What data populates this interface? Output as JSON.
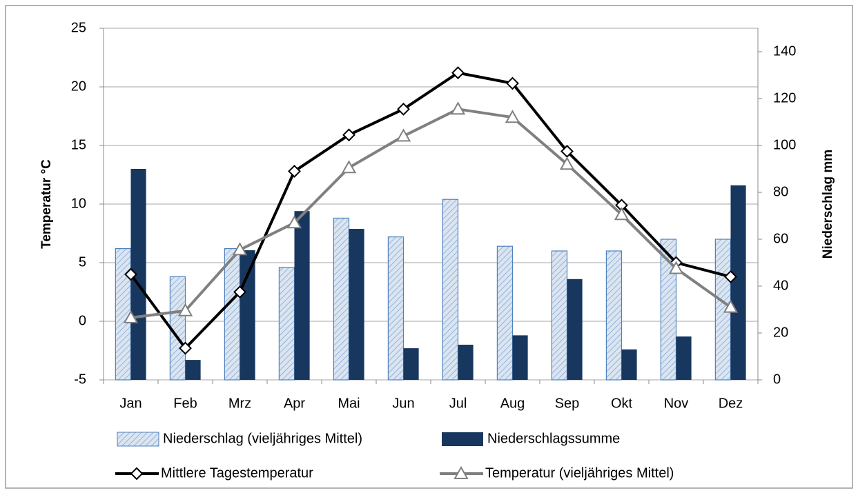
{
  "chart_data": {
    "type": "bar-line",
    "y_label": "Temperatur °C",
    "y2_label": "Niederschlag mm",
    "categories": [
      "Jan",
      "Feb",
      "Mrz",
      "Apr",
      "Mai",
      "Jun",
      "Jul",
      "Aug",
      "Sep",
      "Okt",
      "Nov",
      "Dez"
    ],
    "series": [
      {
        "name": "Niederschlag (vieljähriges Mittel)",
        "kind": "bar",
        "axis": "y2",
        "color": "#4f81bd",
        "hatch": true,
        "values": [
          56,
          44,
          56,
          48,
          69,
          61,
          77,
          57,
          55,
          55,
          60,
          60
        ]
      },
      {
        "name": "Niederschlagssumme",
        "kind": "bar",
        "axis": "y2",
        "color": "#17375e",
        "values": [
          90,
          8.5,
          55.3,
          72,
          64.4,
          13.5,
          15,
          19,
          43,
          13,
          18.5,
          83
        ]
      },
      {
        "name": "Mittlere Tagestemperatur",
        "kind": "line",
        "color": "#000000",
        "marker": "diamond",
        "values": [
          4,
          -2.3,
          2.5,
          12.8,
          15.9,
          18.1,
          21.2,
          20.3,
          14.5,
          9.9,
          5,
          3.8
        ]
      },
      {
        "name": "Temperatur (vieljähriges Mittel)",
        "kind": "line",
        "color": "#808080",
        "marker": "triangle",
        "values": [
          0.3,
          0.9,
          6.1,
          8.4,
          13.1,
          15.8,
          18.1,
          17.4,
          13.4,
          9.1,
          4.5,
          1.2
        ]
      }
    ],
    "ylim": [
      -5,
      25
    ],
    "yticks": [
      -5,
      0,
      5,
      10,
      15,
      20,
      25
    ],
    "y2lim": [
      0,
      150
    ],
    "y2ticks": [
      0,
      20,
      40,
      60,
      80,
      100,
      120,
      140
    ],
    "grid": true,
    "legend": "bottom"
  }
}
